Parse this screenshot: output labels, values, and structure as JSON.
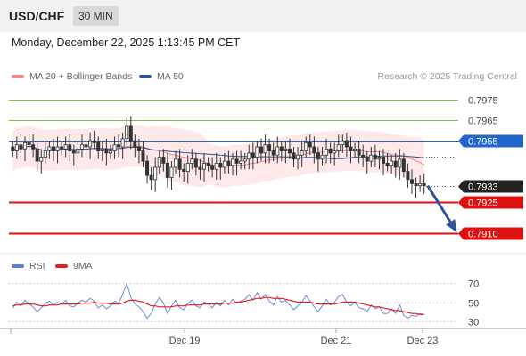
{
  "header": {
    "symbol": "USD/CHF",
    "interval": "30 MIN"
  },
  "timestamp": "Monday, December 22, 2025 1:13:45 PM CET",
  "legend": {
    "ma20_label": "MA 20 + Bollinger Bands",
    "ma20_color": "#f08a8a",
    "ma50_label": "MA 50",
    "ma50_color": "#2f5597"
  },
  "research_note": "Research © 2025 Trading Central",
  "rsi_legend": {
    "rsi_label": "RSI",
    "rsi_color": "#5b7fd6",
    "ma9_label": "9MA",
    "ma9_color": "#e02020"
  },
  "chart_data": [
    {
      "type": "candlestick",
      "x_ticks": [
        "Dec 19",
        "Dec 21",
        "Dec 23"
      ],
      "ylim": [
        0.7902,
        0.7982
      ],
      "last_price": 0.7933,
      "levels": [
        {
          "value": 0.7975,
          "label": "0.7975",
          "kind": "resistance",
          "color": "#7dbf3a"
        },
        {
          "value": 0.7965,
          "label": "0.7965",
          "kind": "resistance",
          "color": "#7dbf3a"
        },
        {
          "value": 0.7955,
          "label": "0.7955",
          "kind": "pivot",
          "color": "#2266cc"
        },
        {
          "value": 0.7933,
          "label": "0.7933",
          "kind": "last",
          "color": "#222222"
        },
        {
          "value": 0.7925,
          "label": "0.7925",
          "kind": "support",
          "color": "#e01010"
        },
        {
          "value": 0.791,
          "label": "0.7910",
          "kind": "support",
          "color": "#e01010"
        }
      ],
      "forecast_arrow": {
        "from": 0.7933,
        "to": 0.791,
        "direction": "down",
        "color": "#2f5597"
      },
      "close_series": [
        0.795,
        0.7953,
        0.7951,
        0.7954,
        0.7953,
        0.7951,
        0.7945,
        0.7947,
        0.795,
        0.7952,
        0.795,
        0.7952,
        0.7951,
        0.7953,
        0.795,
        0.7949,
        0.7951,
        0.7953,
        0.7952,
        0.7955,
        0.7954,
        0.795,
        0.7951,
        0.7949,
        0.795,
        0.7953,
        0.7952,
        0.7956,
        0.7962,
        0.7955,
        0.7952,
        0.795,
        0.7945,
        0.7938,
        0.7936,
        0.7942,
        0.7947,
        0.7944,
        0.7937,
        0.7942,
        0.7946,
        0.7941,
        0.794,
        0.7944,
        0.7946,
        0.7942,
        0.7941,
        0.7944,
        0.7943,
        0.7941,
        0.7944,
        0.7942,
        0.7945,
        0.7943,
        0.7946,
        0.7944,
        0.7945,
        0.7946,
        0.7949,
        0.7947,
        0.7952,
        0.7949,
        0.7953,
        0.795,
        0.7948,
        0.7952,
        0.795,
        0.7951,
        0.7949,
        0.7946,
        0.7948,
        0.795,
        0.7954,
        0.7952,
        0.7949,
        0.7946,
        0.7948,
        0.7951,
        0.7949,
        0.795,
        0.7953,
        0.7955,
        0.7952,
        0.795,
        0.7951,
        0.7948,
        0.7947,
        0.7945,
        0.7948,
        0.7946,
        0.7947,
        0.7944,
        0.7943,
        0.7945,
        0.7942,
        0.7946,
        0.794,
        0.7936,
        0.7934,
        0.7933,
        0.7934,
        0.7933
      ],
      "moving_averages": [
        {
          "name": "MA 20",
          "color": "#f08a8a"
        },
        {
          "name": "MA 50",
          "color": "#2f5597"
        }
      ]
    },
    {
      "type": "line",
      "name": "RSI",
      "ylim": [
        25,
        75
      ],
      "y_ticks": [
        {
          "value": 70,
          "label": "70"
        },
        {
          "value": 50,
          "label": "50"
        },
        {
          "value": 30,
          "label": "30"
        }
      ],
      "series": [
        {
          "name": "RSI",
          "color": "#5b7fd6",
          "values": [
            44,
            50,
            46,
            52,
            48,
            45,
            40,
            44,
            49,
            51,
            47,
            50,
            48,
            52,
            46,
            45,
            49,
            52,
            50,
            54,
            51,
            44,
            47,
            43,
            46,
            51,
            49,
            58,
            70,
            55,
            48,
            45,
            40,
            33,
            38,
            48,
            55,
            49,
            38,
            46,
            52,
            44,
            42,
            49,
            52,
            46,
            44,
            50,
            48,
            44,
            50,
            46,
            52,
            47,
            53,
            49,
            51,
            53,
            58,
            52,
            60,
            53,
            58,
            51,
            47,
            56,
            50,
            52,
            47,
            42,
            46,
            50,
            57,
            51,
            45,
            40,
            46,
            53,
            47,
            50,
            56,
            58,
            50,
            46,
            50,
            44,
            43,
            40,
            47,
            43,
            45,
            38,
            38,
            43,
            38,
            47,
            36,
            33,
            36,
            35,
            38,
            37
          ]
        },
        {
          "name": "9MA",
          "color": "#e02020",
          "values": [
            46,
            47,
            47,
            48,
            48,
            48,
            47,
            46,
            46,
            47,
            47,
            47,
            48,
            48,
            48,
            48,
            48,
            49,
            49,
            49,
            50,
            49,
            49,
            49,
            48,
            48,
            48,
            49,
            51,
            52,
            52,
            51,
            50,
            48,
            46,
            46,
            45,
            45,
            45,
            45,
            46,
            46,
            46,
            47,
            47,
            47,
            47,
            48,
            48,
            48,
            48,
            48,
            49,
            49,
            49,
            50,
            50,
            51,
            52,
            53,
            54,
            54,
            55,
            55,
            54,
            54,
            54,
            53,
            52,
            51,
            50,
            50,
            50,
            50,
            49,
            48,
            48,
            48,
            48,
            48,
            49,
            50,
            50,
            50,
            50,
            49,
            48,
            47,
            46,
            45,
            45,
            44,
            43,
            42,
            41,
            41,
            40,
            39,
            38,
            38,
            37,
            37
          ]
        }
      ]
    }
  ]
}
